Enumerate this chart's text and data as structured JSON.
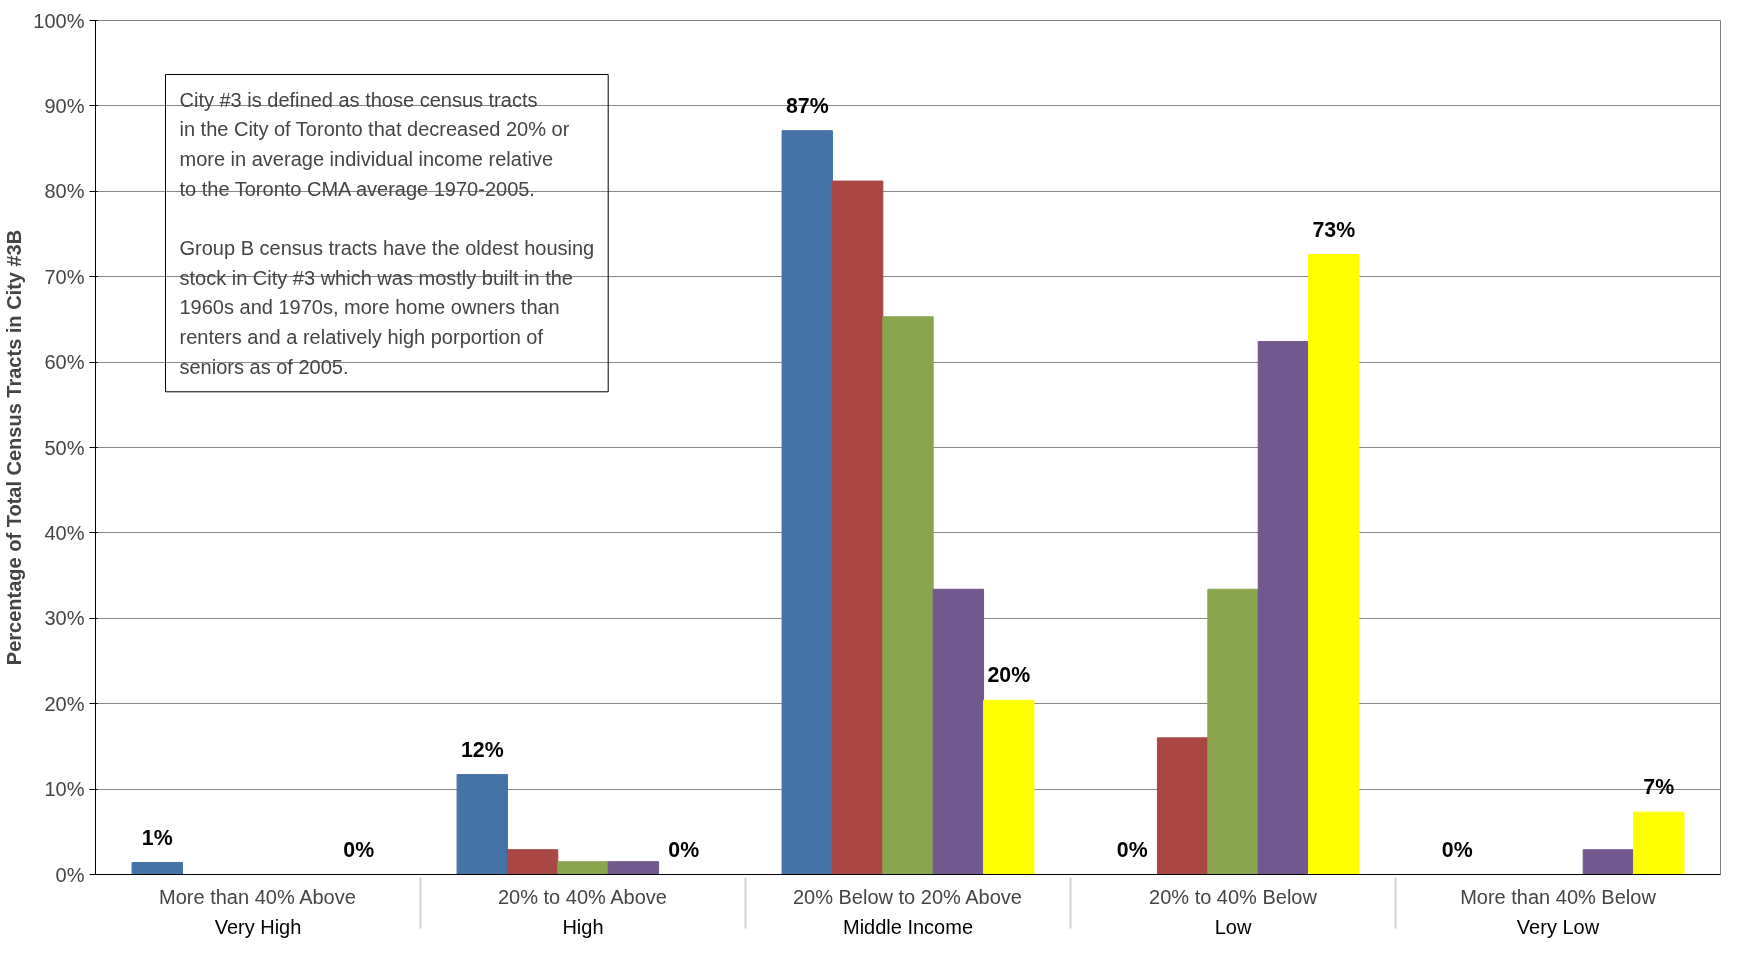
{
  "chart_data": {
    "type": "bar",
    "ylabel": "Percentage of Total Census Tracts in City #3B",
    "categories": [
      "More than 40% Above\nVery High",
      "20% to 40% Above\nHigh",
      "20% Below to 20% Above\nMiddle Income",
      "20% to 40% Below\nLow",
      "More than 40% Below\nVery Low"
    ],
    "series": [
      {
        "color": "#4572a7",
        "values": [
          1.4,
          11.7,
          87.1,
          0,
          0
        ],
        "value_labels": [
          "1%",
          "12%",
          "87%",
          "0%",
          "0%"
        ]
      },
      {
        "color": "#aa4643",
        "values": [
          0,
          2.9,
          81.2,
          16.0,
          0
        ]
      },
      {
        "color": "#89a54e",
        "values": [
          0,
          1.5,
          65.3,
          33.4,
          0
        ]
      },
      {
        "color": "#71588f",
        "values": [
          0,
          1.5,
          33.4,
          62.4,
          2.9
        ]
      },
      {
        "color": "#ffff00",
        "values": [
          0,
          0,
          20.4,
          72.6,
          7.3
        ],
        "value_labels": [
          "0%",
          "0%",
          "20%",
          "73%",
          "7%"
        ]
      }
    ],
    "ylim": [
      0,
      100
    ],
    "yticks": [
      {
        "value": 0,
        "label": "0%"
      },
      {
        "value": 10,
        "label": "10%"
      },
      {
        "value": 20,
        "label": "20%"
      },
      {
        "value": 30,
        "label": "30%"
      },
      {
        "value": 40,
        "label": "40%"
      },
      {
        "value": 50,
        "label": "50%"
      },
      {
        "value": 60,
        "label": "60%"
      },
      {
        "value": 70,
        "label": "70%"
      },
      {
        "value": 80,
        "label": "80%"
      },
      {
        "value": 90,
        "label": "90%"
      },
      {
        "value": 100,
        "label": "100%"
      }
    ],
    "grid": "y",
    "annotations": [
      "City #3 is defined as those census tracts\nin the City of Toronto that decreased 20% or\nmore in average individual income relative\nto the Toronto CMA average 1970-2005.",
      "Group B census tracts have the oldest housing\nstock in City #3 which was mostly built in the\n1960s and 1970s, more home owners than\nrenters and a relatively high porportion of\nseniors as of 2005."
    ]
  }
}
